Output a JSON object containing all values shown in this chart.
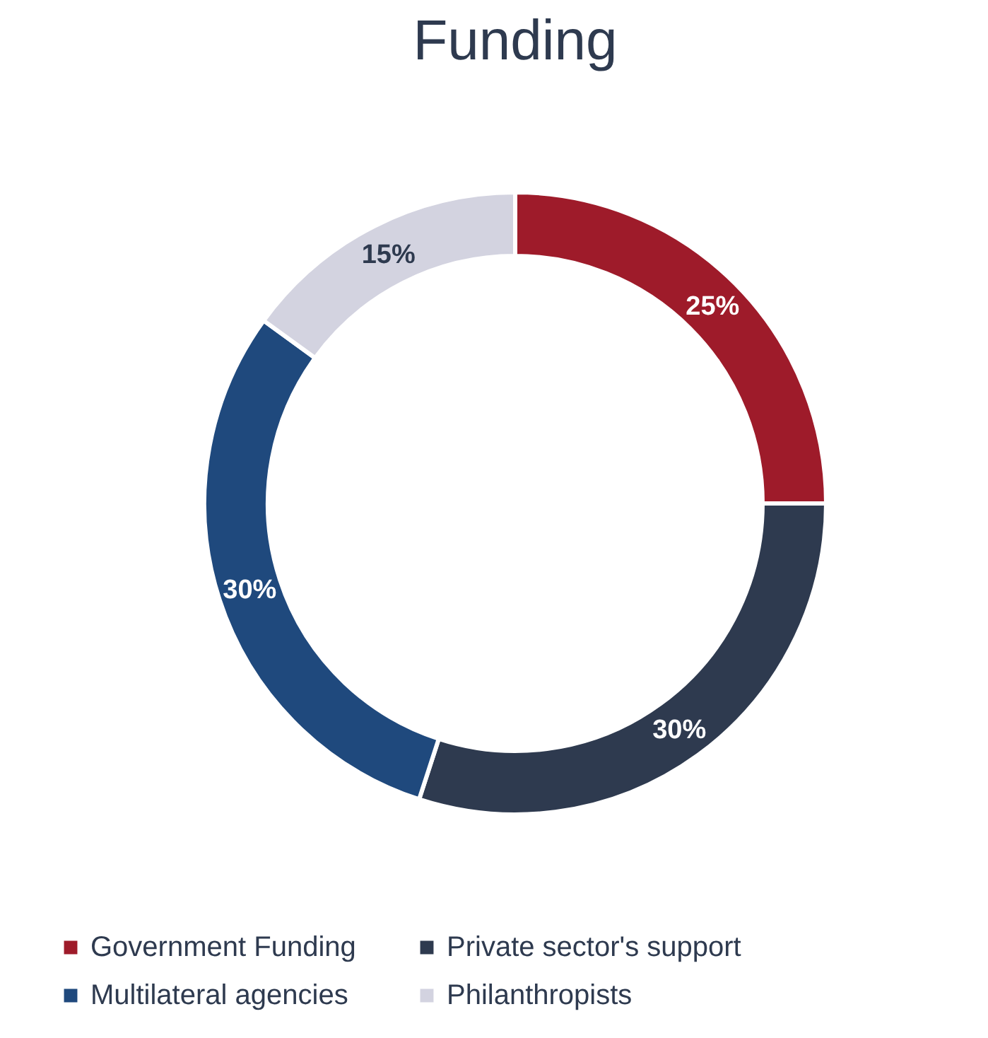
{
  "chart_data": {
    "type": "donut",
    "title": "Funding",
    "categories": [
      "Government Funding",
      "Private sector's support",
      "Multilateral agencies",
      "Philanthropists"
    ],
    "values": [
      25,
      30,
      30,
      15
    ],
    "colors": [
      "#9e1b2a",
      "#2e3a4f",
      "#1f497d",
      "#d3d3e0"
    ],
    "value_labels": [
      "25%",
      "30%",
      "30%",
      "15%"
    ],
    "legend": "bottom"
  }
}
